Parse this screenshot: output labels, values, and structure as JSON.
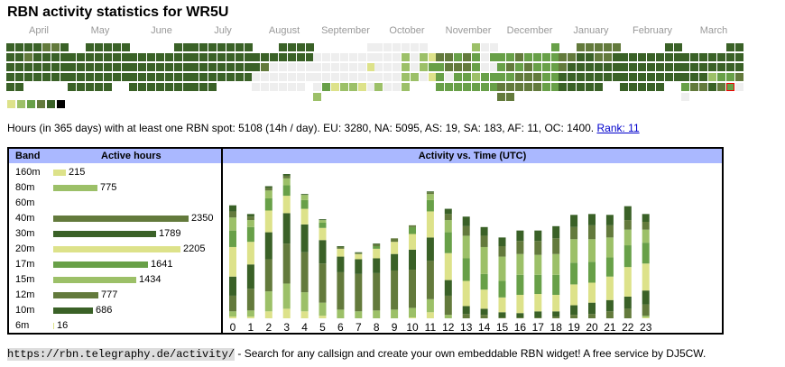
{
  "title": "RBN activity statistics for WR5U",
  "calendar": {
    "color_scale": [
      "#dde28a",
      "#9cc068",
      "#68a048",
      "#637a3c",
      "#3a6127",
      "#000000"
    ],
    "empty_color": "#eeeeee",
    "months": [
      {
        "label": "April",
        "weeks": [
          [
            5,
            5,
            5,
            5,
            4,
            4,
            5
          ],
          [
            5,
            5,
            4,
            5,
            5,
            5,
            5
          ],
          [
            5,
            5,
            5,
            5,
            5,
            5,
            5
          ],
          [
            5,
            5,
            5,
            5,
            5,
            5,
            5
          ],
          [
            5,
            5,
            null,
            null,
            null,
            null,
            null
          ]
        ]
      },
      {
        "label": "May",
        "weeks": [
          [
            null,
            null,
            5,
            5,
            5,
            5,
            5
          ],
          [
            5,
            5,
            5,
            5,
            5,
            5,
            5
          ],
          [
            5,
            5,
            5,
            5,
            5,
            5,
            5
          ],
          [
            5,
            5,
            5,
            5,
            5,
            5,
            5
          ],
          [
            5,
            5,
            5,
            5,
            5,
            null,
            null
          ]
        ]
      },
      {
        "label": "June",
        "weeks": [
          [
            null,
            null,
            null,
            null,
            null,
            5,
            5
          ],
          [
            5,
            5,
            5,
            5,
            5,
            5,
            5
          ],
          [
            5,
            5,
            5,
            5,
            5,
            5,
            5
          ],
          [
            5,
            5,
            5,
            5,
            5,
            5,
            5
          ],
          [
            5,
            5,
            5,
            5,
            5,
            5,
            5
          ]
        ]
      },
      {
        "label": "July",
        "weeks": [
          [
            5,
            5,
            5,
            5,
            5,
            5,
            5
          ],
          [
            5,
            5,
            5,
            5,
            5,
            5,
            5
          ],
          [
            5,
            5,
            5,
            5,
            5,
            5,
            5
          ],
          [
            5,
            5,
            5,
            5,
            5,
            5,
            5
          ],
          [
            5,
            5,
            5,
            null,
            null,
            null,
            null
          ]
        ]
      },
      {
        "label": "August",
        "weeks": [
          [
            null,
            null,
            null,
            5,
            5,
            5,
            5
          ],
          [
            5,
            5,
            5,
            5,
            5,
            5,
            5
          ],
          [
            5,
            4,
            0,
            0,
            0,
            0,
            0
          ],
          [
            0,
            0,
            0,
            0,
            0,
            0,
            0
          ],
          [
            0,
            0,
            0,
            0,
            0,
            0,
            null
          ]
        ]
      },
      {
        "label": "September",
        "weeks": [
          [
            null,
            null,
            null,
            null,
            null,
            null,
            0
          ],
          [
            0,
            0,
            0,
            0,
            0,
            0,
            0
          ],
          [
            0,
            0,
            0,
            0,
            0,
            0,
            1
          ],
          [
            0,
            0,
            0,
            0,
            0,
            0,
            0
          ],
          [
            0,
            3,
            1,
            2,
            2,
            1,
            0
          ],
          [
            2,
            null,
            null,
            null,
            null,
            null,
            null
          ]
        ]
      },
      {
        "label": "October",
        "weeks": [
          [
            0,
            0,
            0,
            0,
            0,
            0,
            null
          ],
          [
            0,
            0,
            0,
            2,
            0,
            2,
            1
          ],
          [
            0,
            0,
            0,
            2,
            0,
            2,
            3
          ],
          [
            0,
            0,
            0,
            2,
            2,
            0,
            1
          ],
          [
            2,
            0,
            0,
            2,
            null,
            null,
            null
          ]
        ]
      },
      {
        "label": "November",
        "weeks": [
          [
            null,
            null,
            null,
            null,
            2,
            0,
            0
          ],
          [
            4,
            4,
            3,
            4,
            3,
            0,
            3
          ],
          [
            3,
            4,
            4,
            4,
            3,
            0,
            0
          ],
          [
            3,
            0,
            3,
            3,
            2,
            3,
            3
          ],
          [
            3,
            3,
            3,
            3,
            3,
            3,
            3
          ]
        ]
      },
      {
        "label": "December",
        "weeks": [
          [
            null,
            null,
            null,
            null,
            null,
            null,
            3
          ],
          [
            3,
            3,
            4,
            3,
            3,
            3,
            3
          ],
          [
            3,
            4,
            3,
            4,
            3,
            3,
            3
          ],
          [
            3,
            3,
            4,
            4,
            4,
            3,
            3
          ],
          [
            4,
            4,
            4,
            4,
            4,
            3,
            3
          ],
          [
            4,
            4,
            null,
            null,
            null,
            null,
            null
          ]
        ]
      },
      {
        "label": "January",
        "weeks": [
          [
            null,
            null,
            4,
            4,
            4,
            4,
            4
          ],
          [
            4,
            4,
            5,
            5,
            4,
            4,
            5
          ],
          [
            4,
            5,
            5,
            5,
            5,
            5,
            5
          ],
          [
            5,
            5,
            5,
            5,
            5,
            5,
            5
          ],
          [
            5,
            5,
            5,
            5,
            5,
            null,
            null
          ]
        ]
      },
      {
        "label": "February",
        "weeks": [
          [
            null,
            null,
            null,
            null,
            null,
            5,
            5
          ],
          [
            5,
            5,
            5,
            5,
            5,
            5,
            5
          ],
          [
            5,
            5,
            5,
            5,
            5,
            5,
            5
          ],
          [
            5,
            5,
            5,
            5,
            5,
            5,
            5
          ],
          [
            5,
            5,
            5,
            5,
            5,
            null,
            null
          ]
        ]
      },
      {
        "label": "March",
        "weeks": [
          [
            null,
            null,
            null,
            null,
            null,
            5,
            5
          ],
          [
            5,
            5,
            5,
            5,
            5,
            5,
            5
          ],
          [
            5,
            5,
            5,
            5,
            5,
            5,
            5
          ],
          [
            5,
            5,
            5,
            2,
            3,
            3,
            4
          ],
          [
            3,
            4,
            4,
            5,
            4,
            "T",
            0
          ],
          [
            0,
            null,
            null,
            null,
            null,
            null,
            null
          ]
        ]
      }
    ],
    "today_level": 3
  },
  "summary": {
    "text": "Hours (in 365 days) with at least one RBN spot: 5108 (14h / day). EU: 3280, NA: 5095, AS: 19, SA: 183, AF: 11, OC: 1400. ",
    "rank_link": "Rank: 11"
  },
  "band_table": {
    "header_band": "Band",
    "header_hours": "Active hours",
    "bands": [
      {
        "name": "160m",
        "hours": 215,
        "color": "#dde28a"
      },
      {
        "name": "80m",
        "hours": 775,
        "color": "#9cc068"
      },
      {
        "name": "60m",
        "hours": null,
        "color": "#68a048"
      },
      {
        "name": "40m",
        "hours": 2350,
        "color": "#637a3c"
      },
      {
        "name": "30m",
        "hours": 1789,
        "color": "#3a6127"
      },
      {
        "name": "20m",
        "hours": 2205,
        "color": "#dde28a"
      },
      {
        "name": "17m",
        "hours": 1641,
        "color": "#68a048"
      },
      {
        "name": "15m",
        "hours": 1434,
        "color": "#9cc068"
      },
      {
        "name": "12m",
        "hours": 777,
        "color": "#637a3c"
      },
      {
        "name": "10m",
        "hours": 686,
        "color": "#3a6127"
      },
      {
        "name": "6m",
        "hours": 16,
        "color": "#dde28a"
      }
    ]
  },
  "chart_data": {
    "type": "bar",
    "stacked": true,
    "title": "Activity vs. Time (UTC)",
    "xlabel": "",
    "ylabel": "",
    "categories": [
      "0",
      "1",
      "2",
      "3",
      "4",
      "5",
      "6",
      "7",
      "8",
      "9",
      "10",
      "11",
      "12",
      "13",
      "14",
      "15",
      "16",
      "17",
      "18",
      "19",
      "20",
      "21",
      "22",
      "23"
    ],
    "series": [
      {
        "name": "160m",
        "color": "#dde28a",
        "values": [
          10,
          10,
          40,
          55,
          40,
          15,
          0,
          0,
          0,
          0,
          5,
          35,
          0,
          0,
          0,
          0,
          0,
          0,
          0,
          0,
          0,
          0,
          0,
          5
        ]
      },
      {
        "name": "80m",
        "color": "#9cc068",
        "values": [
          30,
          35,
          115,
          145,
          110,
          75,
          50,
          40,
          45,
          50,
          55,
          75,
          20,
          0,
          0,
          0,
          0,
          0,
          0,
          0,
          0,
          0,
          0,
          10
        ]
      },
      {
        "name": "40m",
        "color": "#637a3c",
        "values": [
          90,
          125,
          185,
          230,
          230,
          225,
          215,
          215,
          215,
          225,
          220,
          220,
          110,
          25,
          20,
          5,
          5,
          5,
          10,
          20,
          25,
          40,
          55,
          65
        ]
      },
      {
        "name": "30m",
        "color": "#3a6127",
        "values": [
          110,
          140,
          155,
          175,
          160,
          135,
          90,
          85,
          85,
          95,
          115,
          135,
          90,
          45,
          35,
          30,
          25,
          35,
          30,
          55,
          65,
          65,
          70,
          80
        ]
      },
      {
        "name": "20m",
        "color": "#dde28a",
        "values": [
          170,
          130,
          125,
          100,
          90,
          70,
          45,
          30,
          55,
          70,
          90,
          150,
          155,
          145,
          110,
          85,
          105,
          100,
          95,
          120,
          115,
          135,
          170,
          155
        ]
      },
      {
        "name": "17m",
        "color": "#68a048",
        "values": [
          95,
          85,
          70,
          60,
          50,
          30,
          0,
          0,
          15,
          0,
          40,
          65,
          120,
          130,
          90,
          95,
          115,
          110,
          115,
          125,
          120,
          110,
          125,
          120
        ]
      },
      {
        "name": "15m",
        "color": "#9cc068",
        "values": [
          75,
          40,
          45,
          40,
          30,
          15,
          0,
          0,
          0,
          0,
          0,
          35,
          70,
          130,
          155,
          140,
          120,
          115,
          120,
          135,
          130,
          115,
          90,
          75
        ]
      },
      {
        "name": "12m",
        "color": "#637a3c",
        "values": [
          35,
          20,
          15,
          15,
          0,
          0,
          10,
          5,
          10,
          20,
          10,
          10,
          35,
          55,
          65,
          60,
          75,
          80,
          90,
          70,
          80,
          70,
          55,
          45
        ]
      },
      {
        "name": "10m",
        "color": "#3a6127",
        "values": [
          35,
          15,
          10,
          10,
          5,
          5,
          5,
          5,
          5,
          0,
          0,
          5,
          30,
          55,
          50,
          50,
          60,
          60,
          70,
          70,
          65,
          60,
          80,
          45
        ]
      },
      {
        "name": "6m",
        "color": "#dde28a",
        "values": [
          0,
          0,
          0,
          0,
          0,
          0,
          0,
          0,
          0,
          0,
          0,
          0,
          0,
          0,
          0,
          0,
          0,
          0,
          0,
          0,
          0,
          0,
          0,
          0
        ]
      }
    ],
    "grid": false,
    "legend": "none"
  },
  "footer": {
    "url": "https://rbn.telegraphy.de/activity/",
    "text": " - Search for any callsign and create your own embeddable RBN widget! A free service by DJ5CW."
  }
}
